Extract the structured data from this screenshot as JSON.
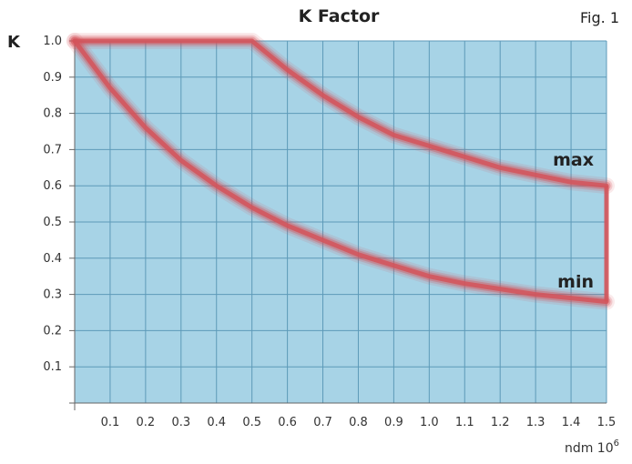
{
  "chart_data": {
    "type": "line",
    "title": "K Factor",
    "figure_label": "Fig. 1",
    "ylabel": "K",
    "xlabel": "ndm 10",
    "xlabel_exponent": "6",
    "xlim": [
      0,
      1.5
    ],
    "ylim": [
      0,
      1.0
    ],
    "x_ticks": [
      "0.1",
      "0.2",
      "0.3",
      "0.4",
      "0.5",
      "0.6",
      "0.7",
      "0.8",
      "0.9",
      "1.0",
      "1.1",
      "1.2",
      "1.3",
      "1.4",
      "1.5"
    ],
    "y_ticks": [
      "0.1",
      "0.2",
      "0.3",
      "0.4",
      "0.5",
      "0.6",
      "0.7",
      "0.8",
      "0.9",
      "1.0"
    ],
    "grid": true,
    "background_color": "#a7d3e6",
    "grid_color": "#5d9ab8",
    "line_color": "#d4545a",
    "series": [
      {
        "name": "max",
        "x": [
          0,
          0.5,
          0.6,
          0.7,
          0.8,
          0.9,
          1.0,
          1.1,
          1.2,
          1.3,
          1.4,
          1.5
        ],
        "y": [
          1.0,
          1.0,
          0.92,
          0.85,
          0.79,
          0.74,
          0.71,
          0.68,
          0.65,
          0.63,
          0.61,
          0.6
        ]
      },
      {
        "name": "min",
        "x": [
          0,
          0.1,
          0.2,
          0.3,
          0.4,
          0.5,
          0.6,
          0.7,
          0.8,
          0.9,
          1.0,
          1.1,
          1.2,
          1.3,
          1.4,
          1.5
        ],
        "y": [
          1.0,
          0.87,
          0.76,
          0.67,
          0.6,
          0.54,
          0.49,
          0.45,
          0.41,
          0.38,
          0.35,
          0.33,
          0.315,
          0.3,
          0.29,
          0.28
        ]
      }
    ],
    "closing_edge": {
      "x": 1.5,
      "y_from": 0.28,
      "y_to": 0.6
    }
  }
}
